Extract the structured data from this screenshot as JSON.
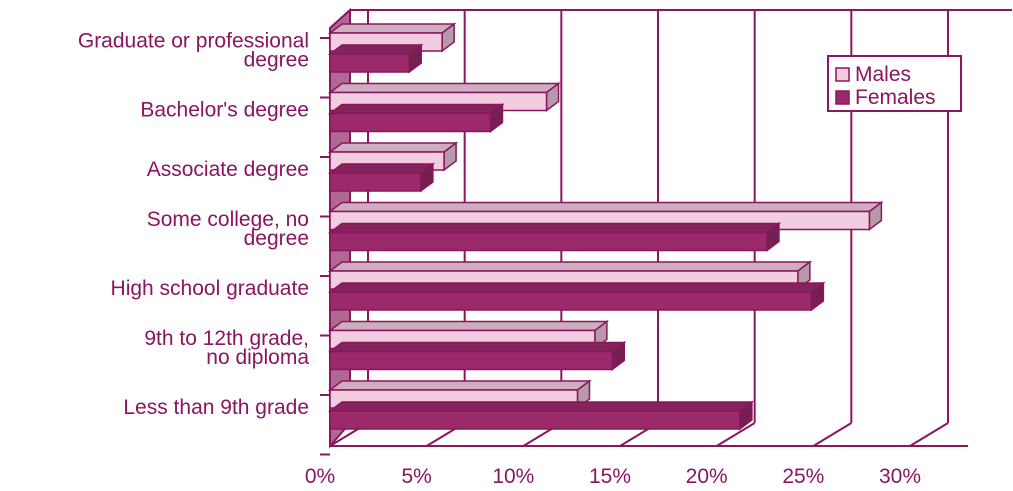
{
  "chart_data": {
    "type": "bar",
    "orientation": "horizontal",
    "three_d": true,
    "categories": [
      "Graduate or professional degree",
      "Bachelor's degree",
      "Associate degree",
      "Some college, no degree",
      "High school graduate",
      "9th to 12th grade, no diploma",
      "Less than 9th grade"
    ],
    "category_label_lines": [
      [
        "Graduate or professional",
        "degree"
      ],
      [
        "Bachelor's degree"
      ],
      [
        "Associate degree"
      ],
      [
        "Some college, no",
        "degree"
      ],
      [
        "High school graduate"
      ],
      [
        "9th to 12th grade,",
        "no diploma"
      ],
      [
        "Less than 9th grade"
      ]
    ],
    "series": [
      {
        "name": "Males",
        "values": [
          5.8,
          11.2,
          5.9,
          27.9,
          24.2,
          13.7,
          12.8
        ],
        "color": "#f2cde0"
      },
      {
        "name": "Females",
        "values": [
          4.1,
          8.3,
          4.7,
          22.6,
          24.9,
          14.6,
          21.2
        ],
        "color": "#9a2a6a"
      }
    ],
    "xlim": [
      0,
      30
    ],
    "x_ticks": [
      "0%",
      "5%",
      "10%",
      "15%",
      "20%",
      "25%",
      "30%"
    ],
    "grid": true,
    "legend_position": "top-right",
    "colors": {
      "line": "#8a1560",
      "wall": "#b06a92"
    }
  }
}
